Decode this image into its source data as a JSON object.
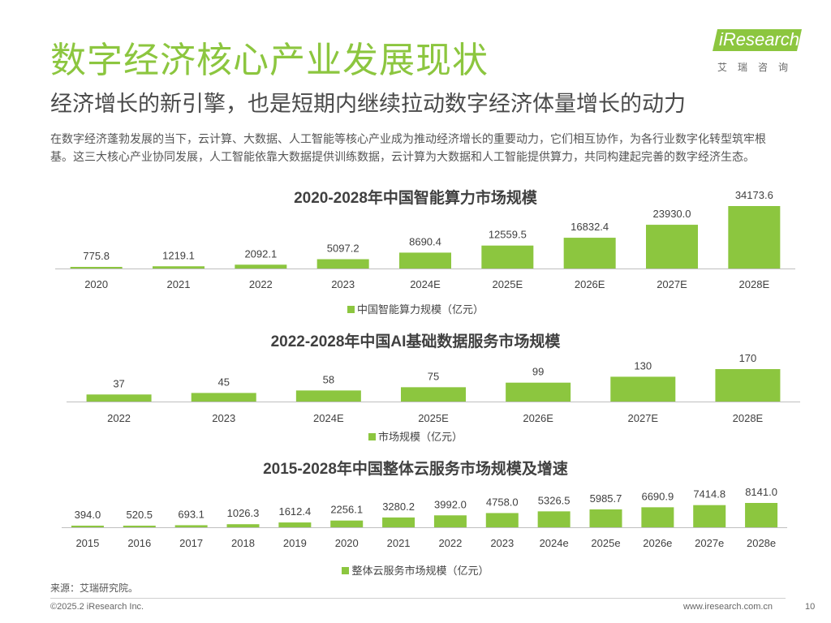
{
  "header": {
    "title": "数字经济核心产业发展现状",
    "subtitle": "经济增长的新引擎，也是短期内继续拉动数字经济体量增长的动力",
    "intro": "在数字经济蓬勃发展的当下，云计算、大数据、人工智能等核心产业成为推动经济增长的重要动力，它们相互协作，为各行业数字化转型筑牢根基。这三大核心产业协同发展，人工智能依靠大数据提供训练数据，云计算为大数据和人工智能提供算力，共同构建起完善的数字经济生态。"
  },
  "logo": {
    "text": "iResearch",
    "sub": "艾瑞咨询"
  },
  "colors": {
    "accent": "#8cc63f",
    "bar": "#8cc63f",
    "axis": "#bfbfbf",
    "text": "#404040"
  },
  "chart_data": [
    {
      "type": "bar",
      "title": "2020-2028年中国智能算力市场规模",
      "categories": [
        "2020",
        "2021",
        "2022",
        "2023",
        "2024E",
        "2025E",
        "2026E",
        "2027E",
        "2028E"
      ],
      "series": [
        {
          "name": "中国智能算力规模（亿元）",
          "values": [
            775.8,
            1219.1,
            2092.1,
            5097.2,
            8690.4,
            12559.5,
            16832.4,
            23930.0,
            34173.6
          ]
        }
      ],
      "labels": [
        "775.8",
        "1219.1",
        "2092.1",
        "5097.2",
        "8690.4",
        "12559.5",
        "16832.4",
        "23930.0",
        "34173.6"
      ],
      "legend_position": "bottom"
    },
    {
      "type": "bar",
      "title": "2022-2028年中国AI基础数据服务市场规模",
      "categories": [
        "2022",
        "2023",
        "2024E",
        "2025E",
        "2026E",
        "2027E",
        "2028E"
      ],
      "series": [
        {
          "name": "市场规模（亿元）",
          "values": [
            37,
            45,
            58,
            75,
            99,
            130,
            170
          ]
        }
      ],
      "labels": [
        "37",
        "45",
        "58",
        "75",
        "99",
        "130",
        "170"
      ],
      "legend_position": "bottom"
    },
    {
      "type": "bar",
      "title": "2015-2028年中国整体云服务市场规模及增速",
      "categories": [
        "2015",
        "2016",
        "2017",
        "2018",
        "2019",
        "2020",
        "2021",
        "2022",
        "2023",
        "2024e",
        "2025e",
        "2026e",
        "2027e",
        "2028e"
      ],
      "series": [
        {
          "name": "整体云服务市场规模（亿元）",
          "values": [
            394.0,
            520.5,
            693.1,
            1026.3,
            1612.4,
            2256.1,
            3280.2,
            3992.0,
            4758.0,
            5326.5,
            5985.7,
            6690.9,
            7414.8,
            8141.0
          ]
        }
      ],
      "labels": [
        "394.0",
        "520.5",
        "693.1",
        "1026.3",
        "1612.4",
        "2256.1",
        "3280.2",
        "3992.0",
        "4758.0",
        "5326.5",
        "5985.7",
        "6690.9",
        "7414.8",
        "8141.0"
      ],
      "legend_position": "bottom"
    }
  ],
  "footer": {
    "source": "来源：艾瑞研究院。",
    "copyright": "©2025.2 iResearch Inc.",
    "site": "www.iresearch.com.cn",
    "page": "10"
  }
}
